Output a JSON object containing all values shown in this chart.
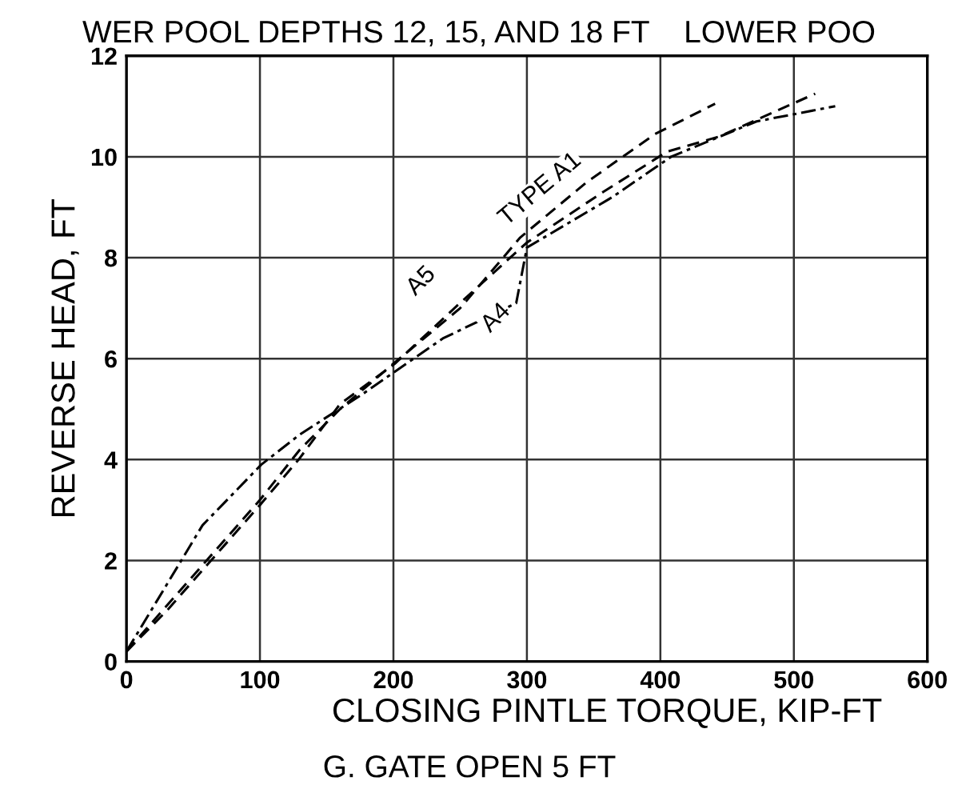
{
  "chart_data": {
    "type": "line",
    "title": "WER POOL DEPTHS 12, 15, AND 18 FT    LOWER POO",
    "xlabel": "CLOSING PINTLE TORQUE, KIP-FT",
    "ylabel": "REVERSE HEAD, FT",
    "annotations": [
      "G. GATE OPEN 5 FT"
    ],
    "xlim": [
      0,
      600
    ],
    "xticks": [
      0,
      100,
      200,
      300,
      400,
      500,
      600
    ],
    "ylim": [
      0,
      12
    ],
    "yticks": [
      0,
      2,
      4,
      6,
      8,
      10,
      12
    ],
    "grid": true,
    "marker": "none",
    "series": [
      {
        "name": "TYPE A1",
        "color": "#000000",
        "line_style": "dashed",
        "x": [
          0,
          30,
          60,
          100,
          130,
          160,
          200,
          250,
          295,
          345,
          396,
          441
        ],
        "values": [
          0.2,
          1.1,
          2.0,
          3.2,
          4.2,
          5.0,
          5.9,
          7.0,
          8.4,
          9.5,
          10.45,
          11.05
        ]
      },
      {
        "name": "A5",
        "color": "#000000",
        "line_style": "dashed",
        "x": [
          0,
          30,
          60,
          100,
          129,
          160,
          201,
          249,
          300,
          357,
          405,
          444,
          516
        ],
        "values": [
          0.2,
          1.0,
          1.9,
          3.1,
          4.0,
          5.1,
          5.9,
          7.08,
          8.3,
          9.3,
          10.1,
          10.4,
          11.25
        ]
      },
      {
        "name": "A4",
        "color": "#000000",
        "line_style": "dotted",
        "x": [
          0,
          57,
          101,
          130,
          177,
          237,
          292,
          300,
          364,
          408,
          472,
          531
        ],
        "values": [
          0.2,
          2.7,
          3.9,
          4.5,
          5.3,
          6.4,
          7.1,
          8.2,
          9.2,
          10.0,
          10.7,
          11.0
        ]
      }
    ]
  }
}
